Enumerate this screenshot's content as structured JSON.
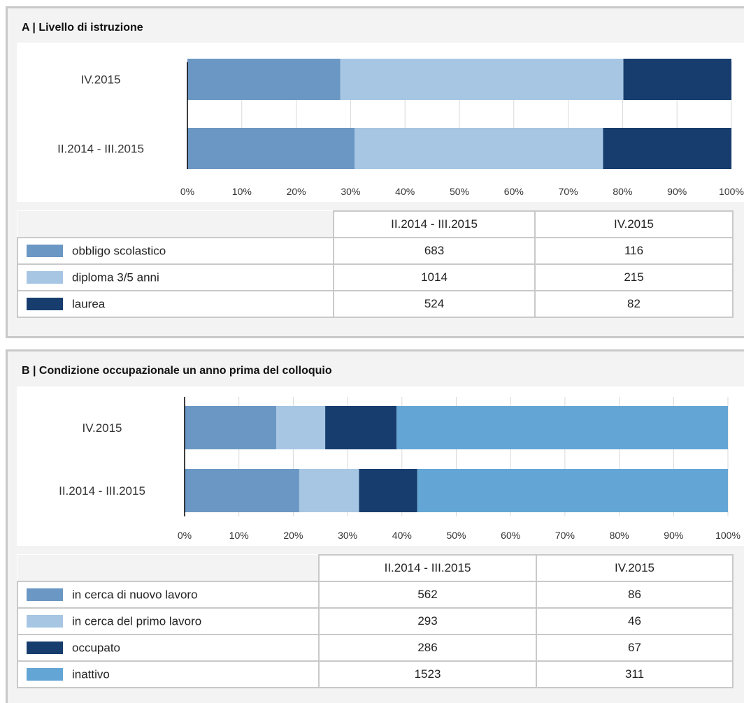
{
  "colors": {
    "obbligo": "#6b97c4",
    "diploma": "#a6c6e3",
    "laurea": "#173d6e",
    "inattivo": "#63a6d6",
    "grid": "#d9d9d9",
    "axis": "#000000"
  },
  "panel_a": {
    "title": "A | Livello di istruzione",
    "table": {
      "headers": [
        "II.2014 - III.2015",
        "IV.2015"
      ],
      "rows": [
        {
          "label": "obbligo scolastico",
          "color": "#6b97c4",
          "values": [
            "683",
            "116"
          ]
        },
        {
          "label": "diploma 3/5 anni",
          "color": "#a6c6e3",
          "values": [
            "1014",
            "215"
          ]
        },
        {
          "label": "laurea",
          "color": "#173d6e",
          "values": [
            "524",
            "82"
          ]
        }
      ]
    }
  },
  "panel_b": {
    "title": "B | Condizione occupazionale un anno prima del colloquio",
    "table": {
      "headers": [
        "II.2014 - III.2015",
        "IV.2015"
      ],
      "rows": [
        {
          "label": "in cerca di nuovo lavoro",
          "color": "#6b97c4",
          "values": [
            "562",
            "86"
          ]
        },
        {
          "label": "in cerca del primo lavoro",
          "color": "#a6c6e3",
          "values": [
            "293",
            "46"
          ]
        },
        {
          "label": "occupato",
          "color": "#173d6e",
          "values": [
            "286",
            "67"
          ]
        },
        {
          "label": "inattivo",
          "color": "#63a6d6",
          "values": [
            "1523",
            "311"
          ]
        }
      ]
    }
  },
  "chart_data": [
    {
      "type": "bar",
      "orientation": "horizontal",
      "stacked": "percent",
      "title": "A | Livello di istruzione",
      "categories": [
        "IV.2015",
        "II.2014 - III.2015"
      ],
      "series": [
        {
          "name": "obbligo scolastico",
          "color": "#6b97c4",
          "values": [
            116,
            683
          ]
        },
        {
          "name": "diploma 3/5 anni",
          "color": "#a6c6e3",
          "values": [
            215,
            1014
          ]
        },
        {
          "name": "laurea",
          "color": "#173d6e",
          "values": [
            82,
            524
          ]
        }
      ],
      "xlim": [
        0,
        100
      ],
      "xticks": [
        "0%",
        "10%",
        "20%",
        "30%",
        "40%",
        "50%",
        "60%",
        "70%",
        "80%",
        "90%",
        "100%"
      ],
      "grid": true,
      "legend": "table-below"
    },
    {
      "type": "bar",
      "orientation": "horizontal",
      "stacked": "percent",
      "title": "B | Condizione occupazionale un anno prima del colloquio",
      "categories": [
        "IV.2015",
        "II.2014 - III.2015"
      ],
      "series": [
        {
          "name": "in cerca di nuovo lavoro",
          "color": "#6b97c4",
          "values": [
            86,
            562
          ]
        },
        {
          "name": "in cerca del primo lavoro",
          "color": "#a6c6e3",
          "values": [
            46,
            293
          ]
        },
        {
          "name": "occupato",
          "color": "#173d6e",
          "values": [
            67,
            286
          ]
        },
        {
          "name": "inattivo",
          "color": "#63a6d6",
          "values": [
            311,
            1523
          ]
        }
      ],
      "xlim": [
        0,
        100
      ],
      "xticks": [
        "0%",
        "10%",
        "20%",
        "30%",
        "40%",
        "50%",
        "60%",
        "70%",
        "80%",
        "90%",
        "100%"
      ],
      "grid": true,
      "legend": "table-below"
    }
  ]
}
